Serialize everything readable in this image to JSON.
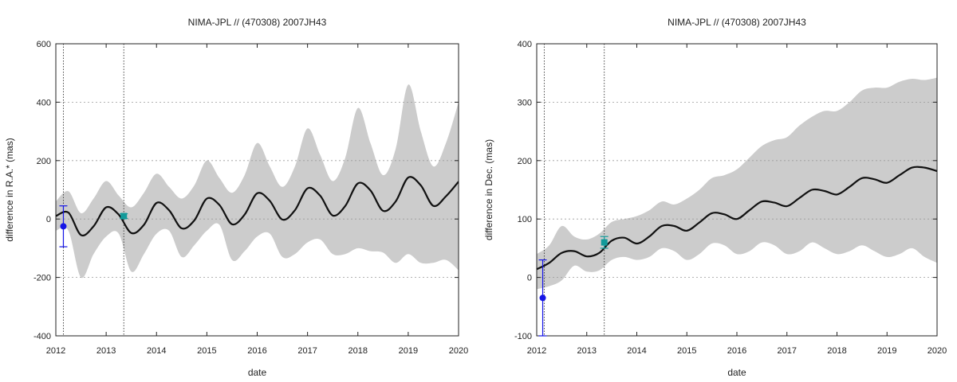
{
  "chart_data": [
    {
      "type": "line",
      "title": "NIMA-JPL // (470308) 2007JH43",
      "xlabel": "date",
      "ylabel": "difference in R.A.* (mas)",
      "xlim": [
        2012,
        2020
      ],
      "ylim": [
        -400,
        600
      ],
      "xticks": [
        "2012",
        "2013",
        "2014",
        "2015",
        "2016",
        "2017",
        "2018",
        "2019",
        "2020"
      ],
      "yticks": [
        "-400",
        "-200",
        "0",
        "200",
        "400",
        "600"
      ],
      "grid": true,
      "vlines": [
        2012.15,
        2013.35
      ],
      "band_color": "#cccccc",
      "line_color": "#111111",
      "x": [
        2012.0,
        2012.25,
        2012.5,
        2012.75,
        2013.0,
        2013.25,
        2013.5,
        2013.75,
        2014.0,
        2014.25,
        2014.5,
        2014.75,
        2015.0,
        2015.25,
        2015.5,
        2015.75,
        2016.0,
        2016.25,
        2016.5,
        2016.75,
        2017.0,
        2017.25,
        2017.5,
        2017.75,
        2018.0,
        2018.25,
        2018.5,
        2018.75,
        2019.0,
        2019.25,
        2019.5,
        2019.75,
        2020.0
      ],
      "curve": [
        10,
        22,
        -55,
        -25,
        40,
        15,
        -48,
        -20,
        55,
        30,
        -32,
        -5,
        70,
        48,
        -18,
        15,
        88,
        62,
        -2,
        30,
        105,
        80,
        12,
        45,
        122,
        98,
        28,
        60,
        142,
        115,
        45,
        78,
        128
      ],
      "band_upper": [
        60,
        95,
        20,
        70,
        130,
        80,
        40,
        90,
        155,
        110,
        70,
        115,
        200,
        140,
        90,
        150,
        260,
        180,
        110,
        180,
        310,
        220,
        130,
        210,
        380,
        260,
        150,
        240,
        460,
        300,
        180,
        260,
        400
      ],
      "band_lower": [
        -40,
        -40,
        -200,
        -120,
        -60,
        -50,
        -180,
        -120,
        -50,
        -40,
        -130,
        -90,
        -40,
        -20,
        -140,
        -110,
        -60,
        -50,
        -130,
        -120,
        -80,
        -70,
        -120,
        -120,
        -100,
        -110,
        -115,
        -150,
        -120,
        -150,
        -150,
        -140,
        -175
      ],
      "points": [
        {
          "x": 2012.15,
          "y": -25,
          "err": 70,
          "color": "#1515e6",
          "marker": "circle"
        },
        {
          "x": 2013.35,
          "y": 10,
          "err": 8,
          "color": "#129a9a",
          "marker": "square"
        }
      ]
    },
    {
      "type": "line",
      "title": "NIMA-JPL // (470308) 2007JH43",
      "xlabel": "date",
      "ylabel": "difference in Dec. (mas)",
      "xlim": [
        2012,
        2020
      ],
      "ylim": [
        -100,
        400
      ],
      "xticks": [
        "2012",
        "2013",
        "2014",
        "2015",
        "2016",
        "2017",
        "2018",
        "2019",
        "2020"
      ],
      "yticks": [
        "-100",
        "0",
        "100",
        "200",
        "300",
        "400"
      ],
      "grid": true,
      "vlines": [
        2012.15,
        2013.35
      ],
      "band_color": "#cccccc",
      "line_color": "#111111",
      "x": [
        2012.0,
        2012.25,
        2012.5,
        2012.75,
        2013.0,
        2013.25,
        2013.5,
        2013.75,
        2014.0,
        2014.25,
        2014.5,
        2014.75,
        2015.0,
        2015.25,
        2015.5,
        2015.75,
        2016.0,
        2016.25,
        2016.5,
        2016.75,
        2017.0,
        2017.25,
        2017.5,
        2017.75,
        2018.0,
        2018.25,
        2018.5,
        2018.75,
        2019.0,
        2019.25,
        2019.5,
        2019.75,
        2020.0
      ],
      "curve": [
        14,
        25,
        42,
        45,
        36,
        42,
        63,
        68,
        58,
        70,
        88,
        88,
        80,
        94,
        110,
        108,
        100,
        115,
        130,
        128,
        122,
        136,
        150,
        148,
        142,
        155,
        170,
        168,
        162,
        175,
        188,
        188,
        182
      ],
      "band_upper": [
        40,
        55,
        88,
        70,
        65,
        75,
        95,
        100,
        105,
        115,
        130,
        125,
        135,
        150,
        170,
        175,
        185,
        205,
        225,
        235,
        240,
        260,
        275,
        285,
        285,
        300,
        320,
        325,
        325,
        335,
        340,
        338,
        342
      ],
      "band_lower": [
        -20,
        -15,
        -5,
        20,
        10,
        12,
        30,
        35,
        30,
        35,
        50,
        45,
        30,
        40,
        58,
        55,
        40,
        45,
        60,
        55,
        40,
        45,
        60,
        50,
        40,
        45,
        55,
        45,
        35,
        40,
        50,
        35,
        25
      ],
      "points": [
        {
          "x": 2012.12,
          "y": -35,
          "err": 65,
          "color": "#1515e6",
          "marker": "circle"
        },
        {
          "x": 2013.35,
          "y": 60,
          "err": 10,
          "color": "#129a9a",
          "marker": "square"
        }
      ]
    }
  ]
}
